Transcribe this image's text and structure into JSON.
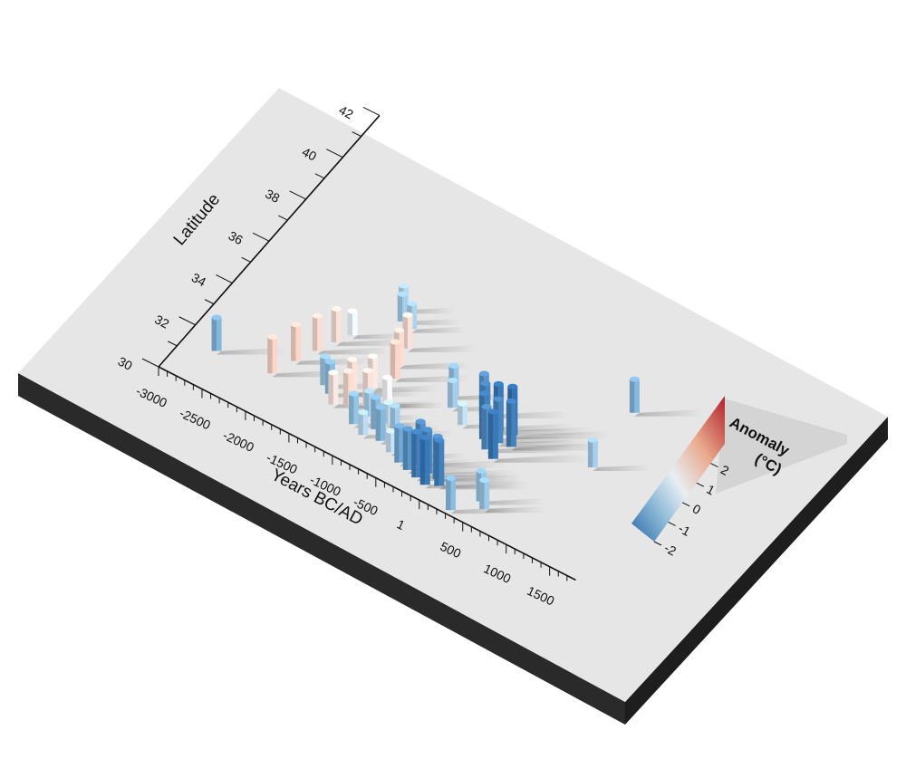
{
  "chart_data": {
    "type": "bar3d",
    "xlabel": "Years BC/AD",
    "ylabel": "Latitude",
    "x_ticks": [
      "-3000",
      "-2500",
      "-2000",
      "-1500",
      "-1000",
      "-500",
      "1",
      "500",
      "1000",
      "1500"
    ],
    "x_tick_values": [
      -3000,
      -2500,
      -2000,
      -1500,
      -1000,
      -500,
      1,
      500,
      1000,
      1500
    ],
    "y_ticks": [
      "30",
      "32",
      "34",
      "36",
      "38",
      "40",
      "42"
    ],
    "y_tick_values": [
      30,
      32,
      34,
      36,
      38,
      40,
      42
    ],
    "xlim": [
      -3000,
      1800
    ],
    "ylim": [
      30,
      42
    ],
    "legend": {
      "title_line1": "Anomaly",
      "title_line2": "(°C)",
      "ticks": [
        "-2",
        "-1",
        "0",
        "1",
        "2"
      ],
      "tick_values": [
        -2,
        -1,
        0,
        1,
        2
      ],
      "range": [
        -2,
        3
      ],
      "colors": [
        "#2c6aa8",
        "#8ebad8",
        "#e8eef3",
        "#e9a98d",
        "#b2202b"
      ]
    },
    "points": [
      {
        "x": -2650,
        "y": 31.5,
        "v": -1.0
      },
      {
        "x": -2050,
        "y": 31.7,
        "v": 1.2
      },
      {
        "x": -1950,
        "y": 32.5,
        "v": 1.2
      },
      {
        "x": -1850,
        "y": 33.2,
        "v": 1.1
      },
      {
        "x": -1760,
        "y": 33.8,
        "v": 1.0
      },
      {
        "x": -1680,
        "y": 34.3,
        "v": 0.4
      },
      {
        "x": -1450,
        "y": 36.0,
        "v": -0.4
      },
      {
        "x": -1380,
        "y": 35.6,
        "v": -0.6
      },
      {
        "x": -1250,
        "y": 35.5,
        "v": -0.5
      },
      {
        "x": -1150,
        "y": 34.8,
        "v": 1.0
      },
      {
        "x": -1100,
        "y": 34.1,
        "v": 1.1
      },
      {
        "x": -1040,
        "y": 33.6,
        "v": 1.2
      },
      {
        "x": -1550,
        "y": 32.2,
        "v": -0.7
      },
      {
        "x": -1450,
        "y": 32.0,
        "v": -0.9
      },
      {
        "x": -1350,
        "y": 31.7,
        "v": 0.9
      },
      {
        "x": -1280,
        "y": 32.4,
        "v": 1.0
      },
      {
        "x": -1220,
        "y": 31.9,
        "v": 1.1
      },
      {
        "x": -1150,
        "y": 32.9,
        "v": 0.9
      },
      {
        "x": -1080,
        "y": 32.3,
        "v": 1.0
      },
      {
        "x": -1050,
        "y": 31.4,
        "v": -0.8
      },
      {
        "x": -980,
        "y": 31.9,
        "v": -0.5
      },
      {
        "x": -920,
        "y": 32.6,
        "v": 0.6
      },
      {
        "x": -900,
        "y": 31.2,
        "v": -0.3
      },
      {
        "x": -840,
        "y": 31.6,
        "v": -0.9
      },
      {
        "x": -780,
        "y": 32.0,
        "v": -0.2
      },
      {
        "x": -720,
        "y": 31.3,
        "v": -1.0
      },
      {
        "x": -660,
        "y": 31.8,
        "v": -0.6
      },
      {
        "x": -560,
        "y": 31.1,
        "v": -0.2
      },
      {
        "x": -420,
        "y": 30.9,
        "v": -1.2
      },
      {
        "x": -350,
        "y": 31.4,
        "v": -0.4
      },
      {
        "x": -300,
        "y": 30.8,
        "v": -1.5
      },
      {
        "x": -240,
        "y": 31.2,
        "v": -1.6
      },
      {
        "x": -180,
        "y": 30.7,
        "v": -1.8
      },
      {
        "x": -120,
        "y": 31.0,
        "v": -1.7
      },
      {
        "x": -60,
        "y": 30.6,
        "v": -1.9
      },
      {
        "x": 0,
        "y": 31.0,
        "v": -1.6
      },
      {
        "x": 60,
        "y": 30.8,
        "v": -1.8
      },
      {
        "x": -450,
        "y": 34.0,
        "v": -0.8
      },
      {
        "x": -380,
        "y": 33.6,
        "v": -0.6
      },
      {
        "x": -180,
        "y": 33.2,
        "v": -0.2
      },
      {
        "x": -80,
        "y": 33.9,
        "v": -1.5
      },
      {
        "x": 20,
        "y": 33.5,
        "v": -1.7
      },
      {
        "x": 90,
        "y": 33.1,
        "v": -1.8
      },
      {
        "x": 150,
        "y": 33.6,
        "v": -1.9
      },
      {
        "x": 230,
        "y": 33.2,
        "v": -1.7
      },
      {
        "x": 290,
        "y": 33.7,
        "v": -2.0
      },
      {
        "x": 360,
        "y": 33.3,
        "v": -1.8
      },
      {
        "x": 180,
        "y": 32.8,
        "v": -1.6
      },
      {
        "x": 300,
        "y": 32.6,
        "v": -1.9
      },
      {
        "x": 1100,
        "y": 36.5,
        "v": -1.0
      },
      {
        "x": 1150,
        "y": 34.0,
        "v": -0.6
      },
      {
        "x": 500,
        "y": 31.0,
        "v": -0.8
      },
      {
        "x": 580,
        "y": 30.8,
        "v": -0.7
      },
      {
        "x": 320,
        "y": 30.2,
        "v": -0.9
      }
    ]
  }
}
